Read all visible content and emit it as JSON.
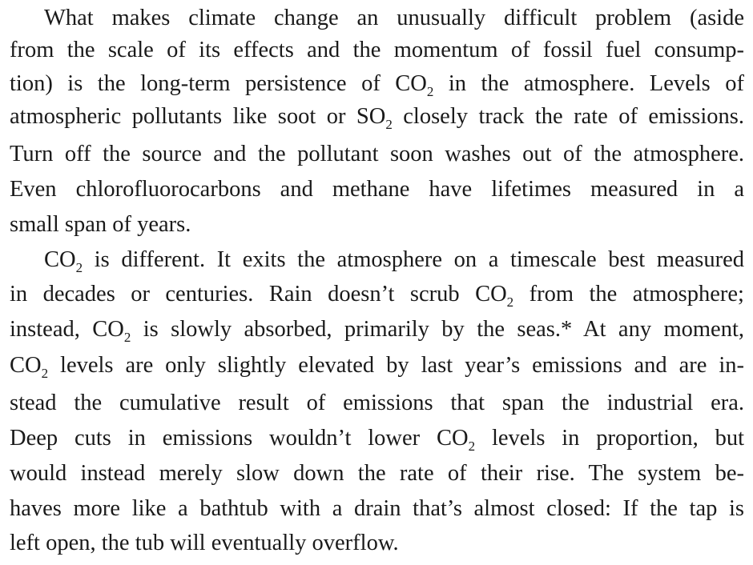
{
  "paragraphs": [
    {
      "lines": [
        {
          "segments": [
            "What makes climate change an unusually difficult problem (aside"
          ]
        },
        {
          "segments": [
            "from the scale of its effects and the momentum of fossil fuel consump-"
          ]
        },
        {
          "segments": [
            "tion) is the long-term persistence of CO",
            "2",
            " in the atmosphere. Levels of"
          ]
        },
        {
          "segments": [
            "atmospheric pollutants like soot or SO",
            "2",
            " closely track the rate of emissions."
          ]
        },
        {
          "segments": [
            "Turn off the source and the pollutant soon washes out of the atmosphere."
          ]
        },
        {
          "segments": [
            "Even chlorofluorocarbons and methane have lifetimes measured in a"
          ]
        },
        {
          "segments": [
            "small span of years."
          ]
        }
      ]
    },
    {
      "lines": [
        {
          "segments": [
            "CO",
            "2",
            " is different. It exits the atmosphere on a timescale best measured"
          ]
        },
        {
          "segments": [
            "in decades or centuries. Rain doesn’t scrub CO",
            "2",
            " from the atmosphere;"
          ]
        },
        {
          "segments": [
            "instead, CO",
            "2",
            " is slowly absorbed, primarily by the seas.* At any moment,"
          ]
        },
        {
          "segments": [
            "CO",
            "2",
            " levels are only slightly elevated by last year’s emissions and are in-"
          ]
        },
        {
          "segments": [
            "stead the cumulative result of emissions that span the industrial era."
          ]
        },
        {
          "segments": [
            "Deep cuts in emissions wouldn’t lower CO",
            "2",
            " levels in proportion, but"
          ]
        },
        {
          "segments": [
            "would instead merely slow down the rate of their rise. The system be-"
          ]
        },
        {
          "segments": [
            "haves more like a bathtub with a drain that’s almost closed: If the tap is"
          ]
        },
        {
          "segments": [
            "left open, the tub will eventually overflow."
          ]
        }
      ]
    }
  ]
}
